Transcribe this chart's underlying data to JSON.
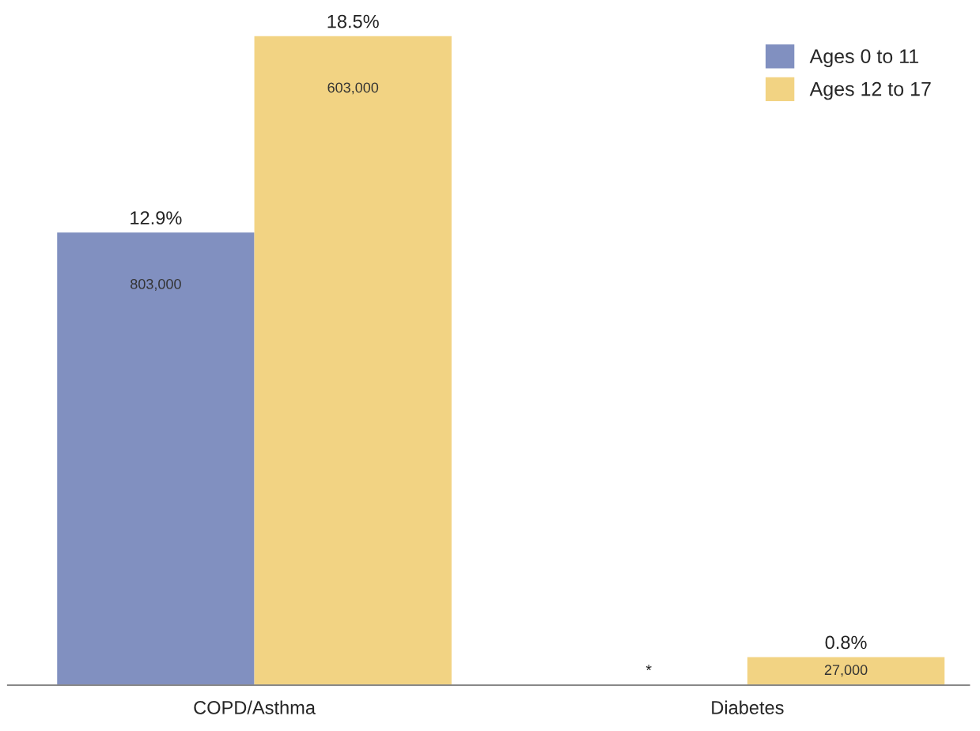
{
  "chart_data": {
    "type": "bar",
    "categories": [
      "COPD/Asthma",
      "Diabetes"
    ],
    "series": [
      {
        "name": "Ages 0 to 11",
        "color": "#8190c0",
        "values": [
          12.9,
          null
        ],
        "value_labels": [
          "12.9%",
          null
        ]
      },
      {
        "name": "Ages 12 to 17",
        "color": "#f2d383",
        "values": [
          18.5,
          0.8
        ],
        "value_labels": [
          "18.5%",
          "0.8%"
        ]
      }
    ],
    "annotations": [
      "803,000",
      "*",
      "603,000",
      "27,000"
    ],
    "legend": "top right",
    "grid": false
  }
}
